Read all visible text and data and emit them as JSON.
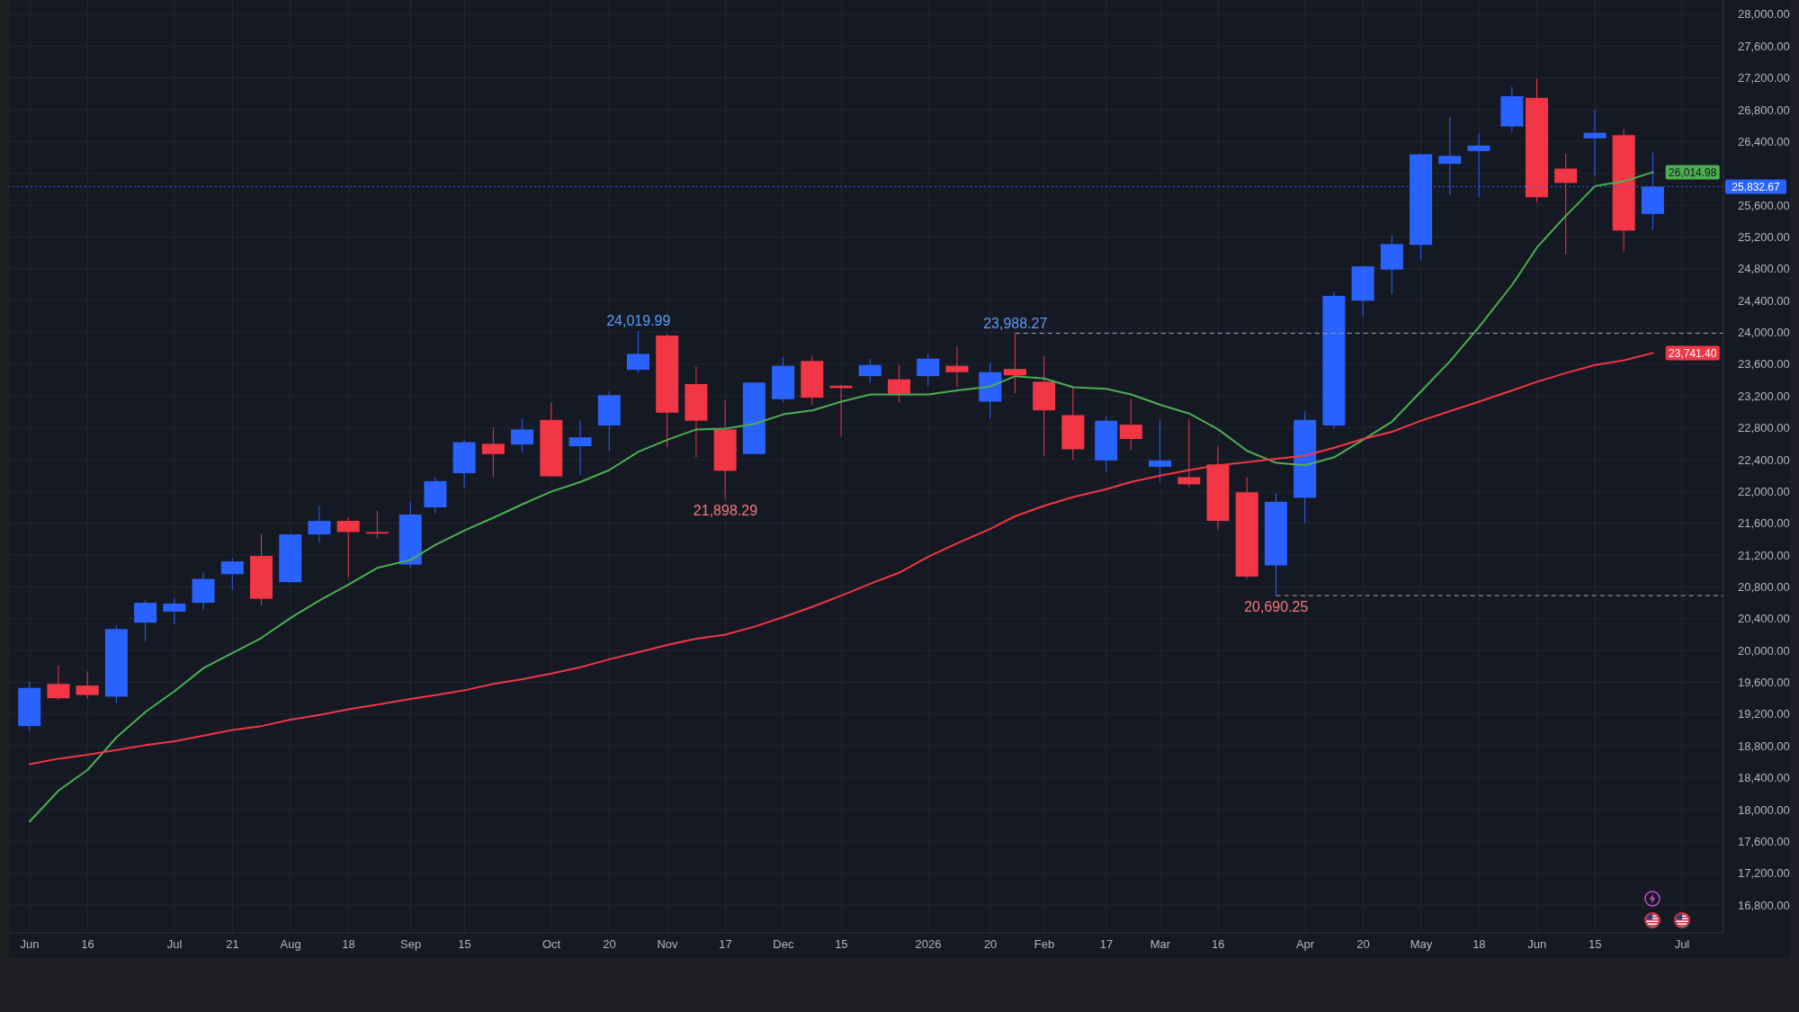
{
  "chart_data": {
    "type": "candlestick",
    "x": [
      "2025-06-02",
      "2025-06-09",
      "2025-06-16",
      "2025-06-23",
      "2025-06-30",
      "2025-07-07",
      "2025-07-14",
      "2025-07-21",
      "2025-07-28",
      "2025-08-04",
      "2025-08-11",
      "2025-08-18",
      "2025-08-25",
      "2025-09-02",
      "2025-09-08",
      "2025-09-15",
      "2025-09-22",
      "2025-09-29",
      "2025-10-06",
      "2025-10-13",
      "2025-10-20",
      "2025-10-27",
      "2025-11-03",
      "2025-11-10",
      "2025-11-17",
      "2025-11-24",
      "2025-12-01",
      "2025-12-08",
      "2025-12-15",
      "2025-12-22",
      "2025-12-29",
      "2026-01-05",
      "2026-01-12",
      "2026-01-20",
      "2026-01-26",
      "2026-02-02",
      "2026-02-09",
      "2026-02-17",
      "2026-02-23",
      "2026-03-02",
      "2026-03-09",
      "2026-03-16",
      "2026-03-23",
      "2026-03-30",
      "2026-04-06",
      "2026-04-13",
      "2026-04-20",
      "2026-04-27",
      "2026-05-04",
      "2026-05-11",
      "2026-05-18",
      "2026-05-26",
      "2026-06-01",
      "2026-06-08",
      "2026-06-15",
      "2026-06-22",
      "2026-06-29"
    ],
    "ohlc": [
      [
        19050,
        19610,
        18990,
        19530
      ],
      [
        19580,
        19810,
        19380,
        19400
      ],
      [
        19560,
        19740,
        19390,
        19440
      ],
      [
        19420,
        20320,
        19340,
        20270
      ],
      [
        20350,
        20630,
        20110,
        20600
      ],
      [
        20490,
        20660,
        20330,
        20590
      ],
      [
        20600,
        20990,
        20510,
        20900
      ],
      [
        20960,
        21170,
        20760,
        21120
      ],
      [
        21190,
        21470,
        20570,
        20650
      ],
      [
        20860,
        21470,
        20850,
        21460
      ],
      [
        21460,
        21820,
        21360,
        21630
      ],
      [
        21630,
        21670,
        20920,
        21490
      ],
      [
        21490,
        21760,
        21410,
        21470
      ],
      [
        21080,
        21870,
        21040,
        21710
      ],
      [
        21800,
        22180,
        21720,
        22130
      ],
      [
        22230,
        22650,
        22050,
        22620
      ],
      [
        22600,
        22800,
        22180,
        22470
      ],
      [
        22590,
        22920,
        22490,
        22780
      ],
      [
        22900,
        23120,
        22190,
        22190
      ],
      [
        22570,
        22890,
        22210,
        22680
      ],
      [
        22830,
        23260,
        22510,
        23210
      ],
      [
        23530,
        24019.99,
        23490,
        23730
      ],
      [
        23960,
        23980,
        22560,
        22990
      ],
      [
        23350,
        23570,
        22430,
        22890
      ],
      [
        22780,
        23150,
        21898.29,
        22260
      ],
      [
        22470,
        23370,
        22470,
        23370
      ],
      [
        23160,
        23690,
        23120,
        23580
      ],
      [
        23640,
        23710,
        23090,
        23180
      ],
      [
        23330,
        23340,
        22690,
        23300
      ],
      [
        23450,
        23670,
        23370,
        23590
      ],
      [
        23410,
        23590,
        23120,
        23230
      ],
      [
        23450,
        23730,
        23330,
        23670
      ],
      [
        23580,
        23820,
        23310,
        23500
      ],
      [
        23130,
        23620,
        22920,
        23500
      ],
      [
        23540,
        23988.27,
        23230,
        23460
      ],
      [
        23380,
        23700,
        22450,
        23020
      ],
      [
        22960,
        23320,
        22400,
        22530
      ],
      [
        22390,
        22940,
        22250,
        22890
      ],
      [
        22840,
        23170,
        22520,
        22660
      ],
      [
        22310,
        22890,
        22120,
        22390
      ],
      [
        22180,
        22910,
        22050,
        22090
      ],
      [
        22340,
        22570,
        21520,
        21630
      ],
      [
        21990,
        22180,
        20900,
        20930
      ],
      [
        21070,
        21980,
        20690.25,
        21870
      ],
      [
        21920,
        23010,
        21600,
        22900
      ],
      [
        22830,
        24510,
        22790,
        24460
      ],
      [
        24400,
        24840,
        24200,
        24830
      ],
      [
        24790,
        25220,
        24480,
        25110
      ],
      [
        25100,
        26250,
        24910,
        26240
      ],
      [
        26120,
        26710,
        25730,
        26220
      ],
      [
        26280,
        26500,
        25700,
        26350
      ],
      [
        26590,
        27090,
        26520,
        26970
      ],
      [
        26950,
        27190,
        25640,
        25700
      ],
      [
        26060,
        26250,
        24980,
        25880
      ],
      [
        26440,
        26800,
        25960,
        26510
      ],
      [
        26480,
        26560,
        25020,
        25280
      ],
      [
        25490,
        26260,
        25290,
        25832.67
      ]
    ],
    "colors": [
      "#2962ff",
      "#f23645",
      "#f23645",
      "#2962ff",
      "#2962ff",
      "#2962ff",
      "#2962ff",
      "#2962ff",
      "#f23645",
      "#2962ff",
      "#2962ff",
      "#f23645",
      "#f23645",
      "#2962ff",
      "#2962ff",
      "#2962ff",
      "#f23645",
      "#2962ff",
      "#f23645",
      "#2962ff",
      "#2962ff",
      "#2962ff",
      "#f23645",
      "#f23645",
      "#f23645",
      "#2962ff",
      "#2962ff",
      "#f23645",
      "#f23645",
      "#2962ff",
      "#f23645",
      "#2962ff",
      "#f23645",
      "#2962ff",
      "#f23645",
      "#f23645",
      "#f23645",
      "#2962ff",
      "#f23645",
      "#2962ff",
      "#f23645",
      "#f23645",
      "#f23645",
      "#2962ff",
      "#2962ff",
      "#2962ff",
      "#2962ff",
      "#2962ff",
      "#2962ff",
      "#2962ff",
      "#2962ff",
      "#2962ff",
      "#f23645",
      "#f23645",
      "#2962ff",
      "#f23645",
      "#2962ff"
    ],
    "series": [
      {
        "type": "line",
        "color": "#4caf50",
        "values": [
          17850,
          18240,
          18500,
          18910,
          19230,
          19490,
          19780,
          19970,
          20160,
          20410,
          20630,
          20830,
          21040,
          21140,
          21330,
          21510,
          21670,
          21840,
          22000,
          22120,
          22270,
          22500,
          22650,
          22780,
          22790,
          22850,
          22970,
          23020,
          23130,
          23220,
          23220,
          23220,
          23270,
          23320,
          23450,
          23420,
          23310,
          23290,
          23220,
          23090,
          22980,
          22780,
          22510,
          22360,
          22330,
          22430,
          22650,
          22880,
          23260,
          23640,
          24070,
          24600,
          25070,
          25470,
          25840,
          25900,
          26014.98
        ],
        "value_labels": [
          null,
          null,
          null,
          null,
          null,
          null,
          null,
          null,
          null,
          null,
          null,
          null,
          null,
          null,
          null,
          null,
          null,
          null,
          null,
          null,
          null,
          null,
          null,
          null,
          null,
          null,
          null,
          null,
          null,
          null,
          null,
          null,
          null,
          null,
          null,
          null,
          null,
          null,
          null,
          null,
          null,
          null,
          null,
          null,
          null,
          null,
          null,
          null,
          null,
          null,
          null,
          null,
          null,
          null,
          null,
          null,
          "26,014.98"
        ]
      },
      {
        "type": "line",
        "color": "#f23645",
        "values": [
          18570,
          18640,
          18690,
          18750,
          18810,
          18860,
          18930,
          19000,
          19050,
          19130,
          19190,
          19260,
          19320,
          19390,
          19440,
          19500,
          19580,
          19640,
          19710,
          19790,
          19890,
          19980,
          20070,
          20150,
          20200,
          20300,
          20420,
          20550,
          20690,
          20840,
          20980,
          21180,
          21350,
          21530,
          21690,
          21820,
          21930,
          22030,
          22120,
          22200,
          22270,
          22330,
          22370,
          22410,
          22450,
          22550,
          22660,
          22750,
          22890,
          23010,
          23130,
          23270,
          23380,
          23490,
          23590,
          23650,
          23741.4
        ],
        "value_labels": [
          null,
          null,
          null,
          null,
          null,
          null,
          null,
          null,
          null,
          null,
          null,
          null,
          null,
          null,
          null,
          null,
          null,
          null,
          null,
          null,
          null,
          null,
          null,
          null,
          null,
          null,
          null,
          null,
          null,
          null,
          null,
          null,
          null,
          null,
          null,
          null,
          null,
          null,
          null,
          null,
          null,
          null,
          null,
          null,
          null,
          null,
          null,
          null,
          null,
          null,
          null,
          null,
          null,
          null,
          null,
          null,
          "23,741.40"
        ]
      }
    ],
    "xlim": [
      "2025-05-28",
      "2026-07-16"
    ],
    "xticks": [
      {
        "value": "2025-06-02",
        "label": "Jun"
      },
      {
        "value": "2025-06-16",
        "label": "16"
      },
      {
        "value": "2025-07-07",
        "label": "Jul"
      },
      {
        "value": "2025-07-21",
        "label": "21"
      },
      {
        "value": "2025-08-04",
        "label": "Aug"
      },
      {
        "value": "2025-08-18",
        "label": "18"
      },
      {
        "value": "2025-09-02",
        "label": "Sep"
      },
      {
        "value": "2025-09-15",
        "label": "15"
      },
      {
        "value": "2025-10-06",
        "label": "Oct"
      },
      {
        "value": "2025-10-20",
        "label": "20"
      },
      {
        "value": "2025-11-03",
        "label": "Nov"
      },
      {
        "value": "2025-11-17",
        "label": "17"
      },
      {
        "value": "2025-12-01",
        "label": "Dec"
      },
      {
        "value": "2025-12-15",
        "label": "15"
      },
      {
        "value": "2026-01-05",
        "label": "2026"
      },
      {
        "value": "2026-01-20",
        "label": "20"
      },
      {
        "value": "2026-02-02",
        "label": "Feb"
      },
      {
        "value": "2026-02-17",
        "label": "17"
      },
      {
        "value": "2026-03-02",
        "label": "Mar"
      },
      {
        "value": "2026-03-16",
        "label": "16"
      },
      {
        "value": "2026-04-06",
        "label": "Apr"
      },
      {
        "value": "2026-04-20",
        "label": "20"
      },
      {
        "value": "2026-05-04",
        "label": "May"
      },
      {
        "value": "2026-05-18",
        "label": "18"
      },
      {
        "value": "2026-06-01",
        "label": "Jun"
      },
      {
        "value": "2026-06-15",
        "label": "15"
      },
      {
        "value": "2026-07-06",
        "label": "Jul"
      }
    ],
    "ylim": [
      16450,
      28180
    ],
    "yticks": [
      {
        "value": 16800,
        "label": "16,800.00"
      },
      {
        "value": 17200,
        "label": "17,200.00"
      },
      {
        "value": 17600,
        "label": "17,600.00"
      },
      {
        "value": 18000,
        "label": "18,000.00"
      },
      {
        "value": 18400,
        "label": "18,400.00"
      },
      {
        "value": 18800,
        "label": "18,800.00"
      },
      {
        "value": 19200,
        "label": "19,200.00"
      },
      {
        "value": 19600,
        "label": "19,600.00"
      },
      {
        "value": 20000,
        "label": "20,000.00"
      },
      {
        "value": 20400,
        "label": "20,400.00"
      },
      {
        "value": 20800,
        "label": "20,800.00"
      },
      {
        "value": 21200,
        "label": "21,200.00"
      },
      {
        "value": 21600,
        "label": "21,600.00"
      },
      {
        "value": 22000,
        "label": "22,000.00"
      },
      {
        "value": 22400,
        "label": "22,400.00"
      },
      {
        "value": 22800,
        "label": "22,800.00"
      },
      {
        "value": 23200,
        "label": "23,200.00"
      },
      {
        "value": 23600,
        "label": "23,600.00"
      },
      {
        "value": 24000,
        "label": "24,000.00"
      },
      {
        "value": 24400,
        "label": "24,400.00"
      },
      {
        "value": 24800,
        "label": "24,800.00"
      },
      {
        "value": 25200,
        "label": "25,200.00"
      },
      {
        "value": 25600,
        "label": "25,600.00"
      },
      {
        "value": 26000,
        "label": null
      },
      {
        "value": 26400,
        "label": "26,400.00"
      },
      {
        "value": 26800,
        "label": "26,800.00"
      },
      {
        "value": 27200,
        "label": "27,200.00"
      },
      {
        "value": 27600,
        "label": "27,600.00"
      },
      {
        "value": 28000,
        "label": "28,000.00"
      }
    ],
    "grid": true,
    "ref_lines": [
      {
        "axis": "y",
        "value": 25832.67,
        "label": "25,832.67",
        "color": "#2962ff",
        "line_style": "dotted"
      },
      {
        "axis": "y",
        "value": 23988.27,
        "color": "#9aa3b5",
        "line_style": "dashed"
      },
      {
        "axis": "y",
        "value": 20690.25,
        "color": "#9aa3b5",
        "line_style": "dashed"
      }
    ],
    "annotations": [
      {
        "text": "24,019.99",
        "x": "2025-10-27",
        "y": 24019.99
      },
      {
        "text": "21,898.29",
        "x": "2025-11-17",
        "y": 21898.29
      },
      {
        "text": "23,988.27",
        "x": "2026-01-26",
        "y": 23988.27
      },
      {
        "text": "20,690.25",
        "x": "2026-03-30",
        "y": 20690.25
      }
    ]
  }
}
